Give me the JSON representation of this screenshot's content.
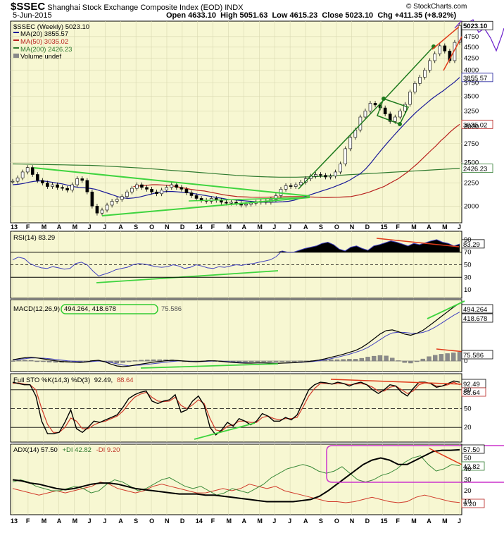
{
  "header": {
    "symbol": "$SSEC",
    "name": "Shanghai Stock Exchange Composite Index (EOD)",
    "exchange": "INDX",
    "watermark": "© StockCharts.com",
    "date": "5-Jun-2015",
    "open": "Open 4633.10",
    "high": "High 5051.63",
    "low": "Low 4615.23",
    "close": "Close 5023.10",
    "chg": "Chg +411.35 (+8.92%)"
  },
  "legend": {
    "main": "$SSEC (Weekly) 5023.10",
    "ma20": "MA(20) 3855.57",
    "ma50": "MA(50) 3035.02",
    "ma200": "MA(200) 2426.23",
    "volume": "Volume undef"
  },
  "indicator_labels": {
    "rsi": "RSI(14) 83.29",
    "macd_name": "MACD(12,26,9)",
    "macd_box": "494.264, 418.678",
    "macd_hist": "75.586",
    "sto_a": "Full STO %K(14,3) %D(3)",
    "sto_k": "92.49,",
    "sto_d": "88.64",
    "adx": "ADX(14) 57.50",
    "pdi": "+DI 42.82",
    "mdi": "-DI 9.20"
  },
  "colors": {
    "panel_bg": "#f7f7d2",
    "grid": "#d8d8b0",
    "price": "#000000",
    "ma20": "#1a1a99",
    "ma50": "#b8211e",
    "ma200": "#2f7a2f",
    "trend_green": "#3fd43f",
    "trend_red": "#e03a1a",
    "bullish_line": "#1d7a1d",
    "rsi_line": "#4040c0",
    "adx_box": "#cc33cc",
    "macd_box": "#33cc33",
    "forecast": "#6a1ecc"
  },
  "chart_data": [
    {
      "type": "line",
      "title": "$SSEC Shanghai Stock Exchange Composite Index (EOD) Weekly",
      "ylim": [
        1850,
        5100
      ],
      "y_scale": "log",
      "y_ticks": [
        2000,
        2250,
        2500,
        2750,
        3000,
        3250,
        3500,
        3750,
        4000,
        4250,
        4500,
        4750
      ],
      "x_ticks": [
        "13",
        "F",
        "M",
        "A",
        "M",
        "J",
        "J",
        "A",
        "S",
        "O",
        "N",
        "D",
        "14",
        "F",
        "M",
        "A",
        "M",
        "J",
        "J",
        "A",
        "S",
        "O",
        "N",
        "D",
        "15",
        "F",
        "M",
        "A",
        "M",
        "J"
      ],
      "value_labels": [
        "5023.10",
        "3855.57",
        "3035.02",
        "2426.23"
      ],
      "series": [
        {
          "name": "$SSEC (Weekly)",
          "values": [
            2270,
            2310,
            2380,
            2435,
            2350,
            2280,
            2250,
            2210,
            2230,
            2200,
            2190,
            2170,
            2230,
            2300,
            2280,
            2150,
            2000,
            1930,
            1960,
            2010,
            2050,
            2070,
            2100,
            2150,
            2190,
            2230,
            2200,
            2180,
            2150,
            2130,
            2170,
            2200,
            2230,
            2200,
            2180,
            2140,
            2110,
            2080,
            2060,
            2050,
            2080,
            2060,
            2040,
            2030,
            2040,
            2030,
            2010,
            2020,
            2030,
            2040,
            2050,
            2040,
            2070,
            2110,
            2180,
            2220,
            2210,
            2230,
            2260,
            2300,
            2330,
            2350,
            2340,
            2320,
            2330,
            2380,
            2480,
            2680,
            2840,
            2950,
            3150,
            3250,
            3380,
            3350,
            3300,
            3200,
            3080,
            3150,
            3250,
            3360,
            3580,
            3740,
            3860,
            4000,
            4200,
            4350,
            4530,
            4410,
            4200,
            4610,
            5023
          ]
        },
        {
          "name": "MA(20)",
          "values": [
            2230,
            2235,
            2245,
            2260,
            2270,
            2275,
            2270,
            2260,
            2250,
            2240,
            2225,
            2210,
            2200,
            2195,
            2190,
            2180,
            2160,
            2140,
            2120,
            2100,
            2085,
            2080,
            2085,
            2095,
            2110,
            2125,
            2140,
            2150,
            2155,
            2155,
            2150,
            2145,
            2140,
            2130,
            2120,
            2110,
            2100,
            2090,
            2080,
            2070,
            2065,
            2060,
            2055,
            2050,
            2045,
            2040,
            2040,
            2040,
            2042,
            2045,
            2050,
            2060,
            2080,
            2100,
            2120,
            2140,
            2160,
            2180,
            2200,
            2225,
            2250,
            2280,
            2320,
            2360,
            2420,
            2500,
            2590,
            2680,
            2770,
            2860,
            2950,
            3040,
            3130,
            3220,
            3300,
            3380,
            3460,
            3530,
            3600,
            3680,
            3760,
            3855
          ]
        },
        {
          "name": "MA(50)",
          "values": [
            2210,
            2215,
            2220,
            2225,
            2230,
            2230,
            2228,
            2225,
            2220,
            2210,
            2200,
            2190,
            2180,
            2172,
            2165,
            2160,
            2150,
            2140,
            2130,
            2120,
            2112,
            2106,
            2100,
            2097,
            2095,
            2093,
            2092,
            2092,
            2093,
            2094,
            2095,
            2096,
            2098,
            2100,
            2100,
            2100,
            2098,
            2096,
            2094,
            2092,
            2090,
            2090,
            2091,
            2092,
            2094,
            2097,
            2100,
            2110,
            2120,
            2135,
            2150,
            2170,
            2190,
            2210,
            2240,
            2270,
            2300,
            2340,
            2380,
            2430,
            2480,
            2540,
            2600,
            2660,
            2720,
            2790,
            2850,
            2920,
            2980,
            3035
          ]
        },
        {
          "name": "MA(200)",
          "values": [
            2480,
            2478,
            2476,
            2474,
            2472,
            2470,
            2468,
            2466,
            2464,
            2462,
            2458,
            2452,
            2446,
            2440,
            2434,
            2428,
            2420,
            2412,
            2404,
            2396,
            2388,
            2380,
            2372,
            2364,
            2356,
            2348,
            2340,
            2334,
            2328,
            2324,
            2320,
            2318,
            2318,
            2318,
            2320,
            2324,
            2328,
            2334,
            2340,
            2346,
            2352,
            2358,
            2364,
            2370,
            2376,
            2382,
            2388,
            2394,
            2400,
            2406,
            2412,
            2418,
            2426
          ]
        }
      ]
    },
    {
      "type": "line",
      "title": "RSI(14)",
      "ylim": [
        0,
        100
      ],
      "y_ticks": [
        10,
        30,
        50,
        70,
        90
      ],
      "series": [
        {
          "name": "RSI(14)",
          "values": [
            58,
            62,
            60,
            52,
            48,
            45,
            44,
            47,
            45,
            43,
            44,
            52,
            54,
            50,
            40,
            32,
            35,
            38,
            42,
            44,
            46,
            50,
            52,
            51,
            49,
            47,
            46,
            47,
            50,
            48,
            44,
            46,
            50,
            48,
            45,
            44,
            47,
            46,
            48,
            50,
            49,
            51,
            52,
            54,
            56,
            58,
            63,
            72,
            70,
            70,
            73,
            76,
            78,
            80,
            84,
            86,
            82,
            75,
            72,
            78,
            80,
            76,
            73,
            80,
            82,
            85,
            88,
            86,
            83,
            80,
            84,
            82,
            85,
            88,
            90,
            86,
            84,
            80,
            83
          ]
        }
      ]
    },
    {
      "type": "line",
      "title": "MACD(12,26,9)",
      "y_ticks": [
        0
      ],
      "series": [
        {
          "name": "MACD",
          "values": [
            10,
            20,
            28,
            32,
            26,
            18,
            10,
            2,
            -4,
            -8,
            -10,
            -12,
            -8,
            2,
            6,
            -6,
            -26,
            -42,
            -48,
            -44,
            -34,
            -26,
            -18,
            -10,
            -4,
            2,
            6,
            4,
            0,
            -4,
            -6,
            -2,
            2,
            2,
            -2,
            -8,
            -12,
            -16,
            -18,
            -18,
            -16,
            -16,
            -18,
            -20,
            -18,
            -16,
            -14,
            -10,
            -6,
            0,
            8,
            18,
            32,
            44,
            58,
            74,
            90,
            116,
            150,
            190,
            230,
            260,
            266,
            250,
            230,
            220,
            236,
            262,
            300,
            340,
            380,
            420,
            460,
            494
          ]
        },
        {
          "name": "Signal",
          "values": [
            8,
            14,
            20,
            26,
            26,
            24,
            20,
            14,
            8,
            2,
            -2,
            -6,
            -8,
            -4,
            0,
            -4,
            -12,
            -24,
            -34,
            -40,
            -38,
            -34,
            -28,
            -22,
            -16,
            -10,
            -4,
            0,
            0,
            -2,
            -4,
            -4,
            -2,
            0,
            0,
            -4,
            -8,
            -12,
            -14,
            -16,
            -16,
            -16,
            -16,
            -18,
            -18,
            -16,
            -14,
            -12,
            -8,
            -4,
            2,
            10,
            20,
            32,
            44,
            58,
            74,
            92,
            116,
            148,
            182,
            216,
            240,
            246,
            244,
            238,
            236,
            244,
            262,
            290,
            322,
            356,
            390,
            418
          ]
        },
        {
          "name": "Histogram",
          "values": [
            2,
            6,
            8,
            6,
            0,
            -6,
            -10,
            -12,
            -12,
            -10,
            -8,
            -6,
            0,
            6,
            6,
            -2,
            -14,
            -18,
            -14,
            -4,
            4,
            8,
            10,
            12,
            12,
            12,
            10,
            4,
            0,
            -2,
            -2,
            2,
            4,
            2,
            -2,
            -4,
            -4,
            -4,
            -4,
            -2,
            0,
            0,
            -2,
            -2,
            0,
            0,
            0,
            2,
            2,
            4,
            6,
            8,
            12,
            12,
            14,
            16,
            16,
            24,
            34,
            42,
            48,
            44,
            26,
            4,
            -14,
            -18,
            0,
            18,
            38,
            50,
            58,
            64,
            70,
            76
          ]
        }
      ]
    },
    {
      "type": "line",
      "title": "Full STO %K(14,3) %D(3)",
      "ylim": [
        0,
        100
      ],
      "y_ticks": [
        20,
        50,
        80
      ],
      "series": [
        {
          "name": "%K",
          "values": [
            92,
            90,
            88,
            88,
            70,
            30,
            10,
            10,
            12,
            28,
            48,
            18,
            12,
            20,
            30,
            28,
            32,
            36,
            40,
            52,
            66,
            72,
            76,
            78,
            62,
            58,
            62,
            64,
            72,
            44,
            48,
            62,
            70,
            55,
            20,
            8,
            16,
            28,
            22,
            34,
            30,
            24,
            30,
            42,
            38,
            30,
            30,
            36,
            32,
            40,
            60,
            80,
            88,
            92,
            91,
            89,
            92,
            90,
            86,
            90,
            92,
            88,
            80,
            74,
            80,
            88,
            86,
            76,
            70,
            82,
            92,
            92,
            90,
            84,
            86,
            90,
            94,
            92
          ]
        },
        {
          "name": "%D",
          "values": [
            90,
            91,
            89,
            88,
            80,
            50,
            25,
            12,
            12,
            20,
            35,
            30,
            18,
            18,
            24,
            28,
            30,
            34,
            38,
            46,
            58,
            68,
            73,
            76,
            68,
            62,
            61,
            62,
            68,
            55,
            50,
            56,
            64,
            58,
            34,
            16,
            14,
            22,
            24,
            30,
            30,
            28,
            28,
            36,
            38,
            34,
            32,
            34,
            34,
            36,
            52,
            70,
            82,
            90,
            90,
            89,
            90,
            90,
            88,
            89,
            90,
            88,
            84,
            78,
            78,
            84,
            86,
            80,
            74,
            78,
            88,
            91,
            90,
            86,
            86,
            88,
            92,
            88
          ]
        }
      ]
    },
    {
      "type": "line",
      "title": "ADX(14)",
      "ylim": [
        0,
        60
      ],
      "y_ticks": [
        10,
        20,
        30,
        40,
        50
      ],
      "value_labels": [
        "57.50",
        "42.82",
        "9.20"
      ],
      "series": [
        {
          "name": "ADX(14)",
          "values": [
            30,
            29,
            27,
            26,
            24,
            22,
            21,
            22,
            24,
            26,
            27,
            27,
            26,
            24,
            22,
            21,
            20,
            19,
            18,
            17,
            17,
            17,
            16,
            16,
            15,
            14,
            13,
            12,
            11,
            10,
            10,
            10,
            10,
            11,
            12,
            15,
            20,
            26,
            32,
            38,
            44,
            48,
            50,
            48,
            44,
            44,
            48,
            52,
            56,
            57,
            57,
            57.5
          ]
        },
        {
          "name": "+DI",
          "values": [
            28,
            30,
            28,
            24,
            22,
            20,
            20,
            22,
            24,
            22,
            18,
            20,
            26,
            30,
            28,
            24,
            20,
            22,
            26,
            30,
            32,
            28,
            24,
            22,
            24,
            20,
            16,
            18,
            22,
            20,
            18,
            22,
            26,
            32,
            36,
            40,
            42,
            44,
            42,
            38,
            36,
            38,
            42,
            36,
            30,
            28,
            30,
            34,
            36,
            40,
            46,
            50,
            52,
            44,
            38,
            40,
            44,
            42.82
          ]
        },
        {
          "name": "-DI",
          "values": [
            22,
            20,
            18,
            16,
            18,
            20,
            18,
            20,
            22,
            24,
            28,
            26,
            22,
            20,
            18,
            20,
            24,
            26,
            24,
            22,
            20,
            18,
            18,
            20,
            22,
            20,
            22,
            26,
            24,
            22,
            24,
            20,
            18,
            16,
            14,
            12,
            10,
            10,
            9,
            10,
            12,
            14,
            12,
            10,
            9,
            10,
            14,
            16,
            14,
            12,
            10,
            9.2
          ]
        }
      ]
    }
  ]
}
